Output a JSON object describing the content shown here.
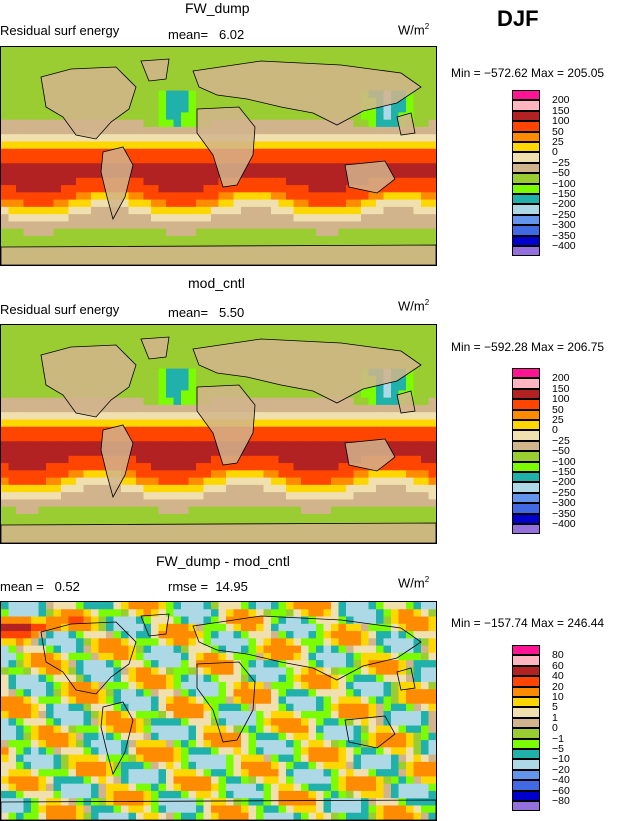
{
  "season": "DJF",
  "panels": [
    {
      "id": "fw",
      "title": "FW_dump",
      "subtitle_left": "Residual surf energy",
      "stat1_label": "mean=",
      "stat1_value": "6.02",
      "stat2_label": "",
      "stat2_value": "",
      "units_base": "W/m",
      "units_exp": "2",
      "min_max": "Min = −572.62 Max = 205.05",
      "chart_data": {
        "type": "heatmap",
        "variable": "Residual surf energy",
        "mean": 6.02,
        "min": -572.62,
        "max": 205.05,
        "units": "W/m2"
      },
      "scale": "abs"
    },
    {
      "id": "cntl",
      "title": "mod_cntl",
      "subtitle_left": "Residual surf energy",
      "stat1_label": "mean=",
      "stat1_value": "5.50",
      "stat2_label": "",
      "stat2_value": "",
      "units_base": "W/m",
      "units_exp": "2",
      "min_max": "Min = −592.28 Max = 206.75",
      "chart_data": {
        "type": "heatmap",
        "variable": "Residual surf energy",
        "mean": 5.5,
        "min": -592.28,
        "max": 206.75,
        "units": "W/m2"
      },
      "scale": "abs"
    },
    {
      "id": "diff",
      "title": "FW_dump - mod_cntl",
      "subtitle_left": "",
      "stat1_label": "mean =",
      "stat1_value": "0.52",
      "stat2_label": "rmse =",
      "stat2_value": "14.95",
      "units_base": "W/m",
      "units_exp": "2",
      "min_max": "Min = −157.74 Max = 246.44",
      "chart_data": {
        "type": "heatmap",
        "mean": 0.52,
        "rmse": 14.95,
        "min": -157.74,
        "max": 246.44,
        "units": "W/m2"
      },
      "scale": "diff"
    }
  ],
  "colorbars": {
    "abs": {
      "labels": [
        "200",
        "150",
        "100",
        "50",
        "25",
        "0",
        "−25",
        "−50",
        "−100",
        "−150",
        "−200",
        "−250",
        "−300",
        "−350",
        "−400"
      ],
      "colors": [
        "#ff1493",
        "#ffb6c1",
        "#b22222",
        "#ff4500",
        "#ff8c00",
        "#ffd700",
        "#f0e0b0",
        "#d2b48c",
        "#9acd32",
        "#7cfc00",
        "#20b2aa",
        "#add8e6",
        "#6495ed",
        "#4169e1",
        "#0000cd",
        "#9370db"
      ]
    },
    "diff": {
      "labels": [
        "80",
        "60",
        "40",
        "20",
        "10",
        "5",
        "1",
        "0",
        "−1",
        "−5",
        "−10",
        "−20",
        "−40",
        "−60",
        "−80"
      ],
      "colors": [
        "#ff1493",
        "#ffb6c1",
        "#b22222",
        "#ff4500",
        "#ff8c00",
        "#ffd700",
        "#f0e0b0",
        "#d2b48c",
        "#9acd32",
        "#7cfc00",
        "#20b2aa",
        "#add8e6",
        "#6495ed",
        "#4169e1",
        "#0000cd",
        "#9370db"
      ]
    }
  }
}
